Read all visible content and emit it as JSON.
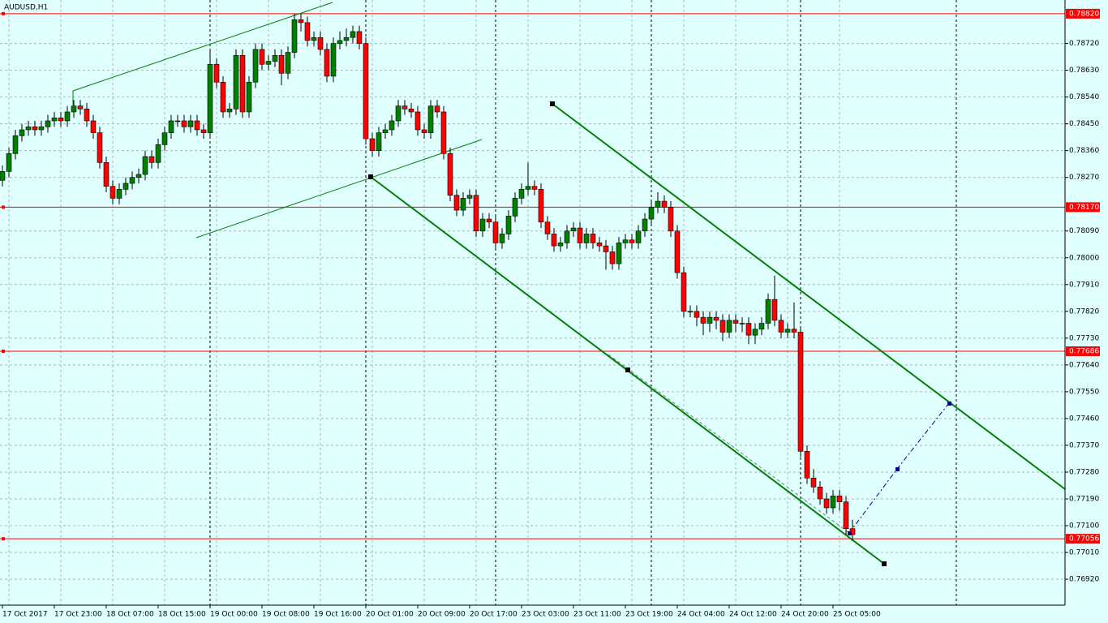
{
  "chart_data": {
    "type": "candlestick",
    "title": "AUDUSD,H1",
    "categories": [
      "17 Oct 2017",
      null,
      null,
      null,
      null,
      null,
      null,
      null,
      "17 Oct 23:00",
      null,
      null,
      null,
      null,
      null,
      null,
      null,
      "18 Oct 07:00",
      null,
      null,
      null,
      null,
      null,
      null,
      null,
      "18 Oct 15:00",
      null,
      null,
      null,
      null,
      null,
      null,
      null,
      "19 Oct 00:00",
      null,
      null,
      null,
      null,
      null,
      null,
      null,
      "19 Oct 08:00",
      null,
      null,
      null,
      null,
      null,
      null,
      null,
      "19 Oct 16:00",
      null,
      null,
      null,
      null,
      null,
      null,
      null,
      "20 Oct 01:00",
      null,
      null,
      null,
      null,
      null,
      null,
      null,
      "20 Oct 09:00",
      null,
      null,
      null,
      null,
      null,
      null,
      null,
      "20 Oct 17:00",
      null,
      null,
      null,
      null,
      null,
      null,
      null,
      "23 Oct 03:00",
      null,
      null,
      null,
      null,
      null,
      null,
      null,
      "23 Oct 11:00",
      null,
      null,
      null,
      null,
      null,
      null,
      null,
      "23 Oct 19:00",
      null,
      null,
      null,
      null,
      null,
      null,
      null,
      "24 Oct 04:00",
      null,
      null,
      null,
      null,
      null,
      null,
      null,
      "24 Oct 12:00",
      null,
      null,
      null,
      null,
      null,
      null,
      null,
      "24 Oct 20:00",
      null,
      null,
      null,
      null,
      null,
      null,
      null,
      "25 Oct 05:00",
      null,
      null,
      null
    ],
    "candles": [
      [
        0.7826,
        0.7831,
        0.7824,
        0.7829
      ],
      [
        0.7829,
        0.7837,
        0.7827,
        0.7835
      ],
      [
        0.7835,
        0.7843,
        0.7833,
        0.7841
      ],
      [
        0.7841,
        0.7845,
        0.7839,
        0.7843
      ],
      [
        0.7843,
        0.7846,
        0.7841,
        0.7844
      ],
      [
        0.7844,
        0.7846,
        0.7841,
        0.7843
      ],
      [
        0.7843,
        0.7846,
        0.7841,
        0.7844
      ],
      [
        0.7844,
        0.7848,
        0.7842,
        0.7846
      ],
      [
        0.7846,
        0.7849,
        0.7844,
        0.7847
      ],
      [
        0.7847,
        0.7849,
        0.7844,
        0.7846
      ],
      [
        0.7846,
        0.7851,
        0.7844,
        0.7849
      ],
      [
        0.7849,
        0.7853,
        0.7847,
        0.7851
      ],
      [
        0.7851,
        0.7853,
        0.7848,
        0.785
      ],
      [
        0.785,
        0.7852,
        0.7844,
        0.7846
      ],
      [
        0.7846,
        0.7848,
        0.784,
        0.7842
      ],
      [
        0.7842,
        0.7844,
        0.783,
        0.7832
      ],
      [
        0.7832,
        0.7834,
        0.7822,
        0.7824
      ],
      [
        0.7824,
        0.7826,
        0.7818,
        0.782
      ],
      [
        0.782,
        0.7825,
        0.7818,
        0.7823
      ],
      [
        0.7823,
        0.7827,
        0.7821,
        0.7825
      ],
      [
        0.7825,
        0.7829,
        0.7823,
        0.7827
      ],
      [
        0.7827,
        0.783,
        0.7825,
        0.7828
      ],
      [
        0.7828,
        0.7836,
        0.7826,
        0.7834
      ],
      [
        0.7834,
        0.7836,
        0.783,
        0.7832
      ],
      [
        0.7832,
        0.784,
        0.783,
        0.7838
      ],
      [
        0.7838,
        0.7844,
        0.7836,
        0.7842
      ],
      [
        0.7842,
        0.7848,
        0.784,
        0.7846
      ],
      [
        0.7846,
        0.7848,
        0.7844,
        0.7846
      ],
      [
        0.7846,
        0.7848,
        0.7842,
        0.7844
      ],
      [
        0.7844,
        0.7848,
        0.7842,
        0.7846
      ],
      [
        0.7846,
        0.7848,
        0.7841,
        0.7843
      ],
      [
        0.7843,
        0.7845,
        0.784,
        0.7842
      ],
      [
        0.7842,
        0.787,
        0.784,
        0.7865
      ],
      [
        0.7865,
        0.7867,
        0.7857,
        0.7859
      ],
      [
        0.7859,
        0.7861,
        0.7847,
        0.7849
      ],
      [
        0.7849,
        0.7852,
        0.7847,
        0.785
      ],
      [
        0.785,
        0.787,
        0.7848,
        0.7868
      ],
      [
        0.7868,
        0.787,
        0.7847,
        0.7849
      ],
      [
        0.7849,
        0.7861,
        0.7847,
        0.7859
      ],
      [
        0.7859,
        0.7872,
        0.7857,
        0.787
      ],
      [
        0.787,
        0.7872,
        0.7863,
        0.7865
      ],
      [
        0.7865,
        0.7868,
        0.7863,
        0.7866
      ],
      [
        0.7866,
        0.787,
        0.7864,
        0.7868
      ],
      [
        0.7868,
        0.787,
        0.7858,
        0.7862
      ],
      [
        0.7862,
        0.7871,
        0.786,
        0.7869
      ],
      [
        0.7869,
        0.7882,
        0.7867,
        0.788
      ],
      [
        0.788,
        0.7882,
        0.7876,
        0.7879
      ],
      [
        0.7879,
        0.7881,
        0.7871,
        0.7873
      ],
      [
        0.7873,
        0.7876,
        0.7871,
        0.7874
      ],
      [
        0.7874,
        0.7876,
        0.7868,
        0.787
      ],
      [
        0.787,
        0.7872,
        0.7859,
        0.7861
      ],
      [
        0.7861,
        0.7874,
        0.7859,
        0.7872
      ],
      [
        0.7872,
        0.7876,
        0.787,
        0.7873
      ],
      [
        0.7873,
        0.7877,
        0.7871,
        0.7874
      ],
      [
        0.7874,
        0.7878,
        0.7872,
        0.7876
      ],
      [
        0.7876,
        0.7878,
        0.787,
        0.7872
      ],
      [
        0.7872,
        0.7874,
        0.7838,
        0.784
      ],
      [
        0.784,
        0.7842,
        0.7834,
        0.7836
      ],
      [
        0.7836,
        0.7844,
        0.7834,
        0.7842
      ],
      [
        0.7842,
        0.7845,
        0.784,
        0.7843
      ],
      [
        0.7843,
        0.7848,
        0.7841,
        0.7846
      ],
      [
        0.7846,
        0.7853,
        0.7844,
        0.7851
      ],
      [
        0.7851,
        0.7853,
        0.7848,
        0.785
      ],
      [
        0.785,
        0.7852,
        0.7847,
        0.7849
      ],
      [
        0.7849,
        0.7851,
        0.7841,
        0.7843
      ],
      [
        0.7843,
        0.7845,
        0.784,
        0.7842
      ],
      [
        0.7842,
        0.7853,
        0.784,
        0.7851
      ],
      [
        0.7851,
        0.7853,
        0.7847,
        0.7849
      ],
      [
        0.7849,
        0.7851,
        0.7833,
        0.7835
      ],
      [
        0.7835,
        0.7837,
        0.7819,
        0.7821
      ],
      [
        0.7821,
        0.7823,
        0.7814,
        0.7816
      ],
      [
        0.7816,
        0.7822,
        0.7814,
        0.782
      ],
      [
        0.782,
        0.7823,
        0.7818,
        0.7821
      ],
      [
        0.7821,
        0.7823,
        0.7807,
        0.7809
      ],
      [
        0.7809,
        0.7815,
        0.7807,
        0.7813
      ],
      [
        0.7813,
        0.7815,
        0.781,
        0.7812
      ],
      [
        0.7812,
        0.7814,
        0.7803,
        0.7805
      ],
      [
        0.7805,
        0.781,
        0.7803,
        0.7808
      ],
      [
        0.7808,
        0.7816,
        0.7806,
        0.7814
      ],
      [
        0.7814,
        0.7822,
        0.7812,
        0.782
      ],
      [
        0.782,
        0.7825,
        0.7818,
        0.7823
      ],
      [
        0.7823,
        0.7832,
        0.7821,
        0.7824
      ],
      [
        0.7824,
        0.7826,
        0.7821,
        0.7823
      ],
      [
        0.7823,
        0.7825,
        0.781,
        0.7812
      ],
      [
        0.7812,
        0.7814,
        0.7806,
        0.7808
      ],
      [
        0.7808,
        0.781,
        0.7802,
        0.7804
      ],
      [
        0.7804,
        0.7807,
        0.7802,
        0.7805
      ],
      [
        0.7805,
        0.7811,
        0.7803,
        0.7809
      ],
      [
        0.7809,
        0.7812,
        0.7807,
        0.781
      ],
      [
        0.781,
        0.7812,
        0.7803,
        0.7805
      ],
      [
        0.7805,
        0.781,
        0.7803,
        0.7808
      ],
      [
        0.7808,
        0.781,
        0.7803,
        0.7805
      ],
      [
        0.7805,
        0.7807,
        0.7802,
        0.7804
      ],
      [
        0.7804,
        0.7806,
        0.7796,
        0.7802
      ],
      [
        0.7802,
        0.7804,
        0.7796,
        0.7798
      ],
      [
        0.7798,
        0.7807,
        0.7796,
        0.7805
      ],
      [
        0.7805,
        0.7808,
        0.7803,
        0.7806
      ],
      [
        0.7806,
        0.7808,
        0.7803,
        0.7805
      ],
      [
        0.7805,
        0.7811,
        0.7803,
        0.7809
      ],
      [
        0.7809,
        0.7815,
        0.7807,
        0.7813
      ],
      [
        0.7813,
        0.7819,
        0.7811,
        0.7817
      ],
      [
        0.7817,
        0.7822,
        0.7815,
        0.7819
      ],
      [
        0.7819,
        0.7821,
        0.7815,
        0.7817
      ],
      [
        0.7817,
        0.7819,
        0.7807,
        0.7809
      ],
      [
        0.7809,
        0.7811,
        0.7793,
        0.7795
      ],
      [
        0.7795,
        0.7797,
        0.778,
        0.7782
      ],
      [
        0.7782,
        0.7784,
        0.778,
        0.7782
      ],
      [
        0.7782,
        0.7784,
        0.7777,
        0.778
      ],
      [
        0.778,
        0.7782,
        0.7774,
        0.7778
      ],
      [
        0.7778,
        0.7782,
        0.7775,
        0.778
      ],
      [
        0.778,
        0.7782,
        0.7776,
        0.7779
      ],
      [
        0.7779,
        0.7781,
        0.7772,
        0.7775
      ],
      [
        0.7775,
        0.7781,
        0.7773,
        0.7779
      ],
      [
        0.7779,
        0.7781,
        0.7775,
        0.7778
      ],
      [
        0.7778,
        0.778,
        0.7775,
        0.7778
      ],
      [
        0.7778,
        0.778,
        0.7771,
        0.7774
      ],
      [
        0.7774,
        0.7778,
        0.7771,
        0.7776
      ],
      [
        0.7776,
        0.778,
        0.7774,
        0.7778
      ],
      [
        0.7778,
        0.7788,
        0.7776,
        0.7786
      ],
      [
        0.7786,
        0.7794,
        0.7777,
        0.7779
      ],
      [
        0.7779,
        0.7781,
        0.7773,
        0.7775
      ],
      [
        0.7775,
        0.7778,
        0.7773,
        0.7776
      ],
      [
        0.7776,
        0.7785,
        0.7773,
        0.7775
      ],
      [
        0.7775,
        0.7777,
        0.7733,
        0.7735
      ],
      [
        0.7735,
        0.7737,
        0.7724,
        0.7726
      ],
      [
        0.7726,
        0.7729,
        0.7721,
        0.7723
      ],
      [
        0.7723,
        0.7725,
        0.7717,
        0.7719
      ],
      [
        0.7719,
        0.7721,
        0.7714,
        0.7716
      ],
      [
        0.7716,
        0.7722,
        0.7714,
        0.772
      ],
      [
        0.772,
        0.7722,
        0.7715,
        0.7718
      ],
      [
        0.7718,
        0.772,
        0.7707,
        0.7709
      ],
      [
        0.7709,
        0.7712,
        0.7705,
        0.7707
      ]
    ],
    "ylim": [
      0.76833,
      0.78866
    ],
    "yticks": [
      {
        "value": 0.7872,
        "label": "0.78720"
      },
      {
        "value": 0.7863,
        "label": "0.78630"
      },
      {
        "value": 0.7854,
        "label": "0.78540"
      },
      {
        "value": 0.7845,
        "label": "0.78450"
      },
      {
        "value": 0.7836,
        "label": "0.78360"
      },
      {
        "value": 0.7827,
        "label": "0.78270"
      },
      {
        "value": 0.7809,
        "label": "0.78090"
      },
      {
        "value": 0.78,
        "label": "0.78000"
      },
      {
        "value": 0.7791,
        "label": "0.77910"
      },
      {
        "value": 0.7782,
        "label": "0.77820"
      },
      {
        "value": 0.7773,
        "label": "0.77730"
      },
      {
        "value": 0.7764,
        "label": "0.77640"
      },
      {
        "value": 0.7755,
        "label": "0.77550"
      },
      {
        "value": 0.7746,
        "label": "0.77460"
      },
      {
        "value": 0.7737,
        "label": "0.77370"
      },
      {
        "value": 0.7728,
        "label": "0.77280"
      },
      {
        "value": 0.7719,
        "label": "0.77190"
      },
      {
        "value": 0.771,
        "label": "0.77100"
      },
      {
        "value": 0.7701,
        "label": "0.77010"
      },
      {
        "value": 0.7692,
        "label": "0.76920"
      }
    ],
    "levels": [
      {
        "value": 0.7882,
        "label": "0.78820"
      },
      {
        "value": 0.7817,
        "label": "0.78170"
      },
      {
        "value": 0.77686,
        "label": "0.77686"
      },
      {
        "value": 0.77056,
        "label": "0.77056"
      }
    ],
    "up_color": "#008000",
    "down_color": "#ff0000",
    "level_color": "#ff0000",
    "grid": true
  }
}
